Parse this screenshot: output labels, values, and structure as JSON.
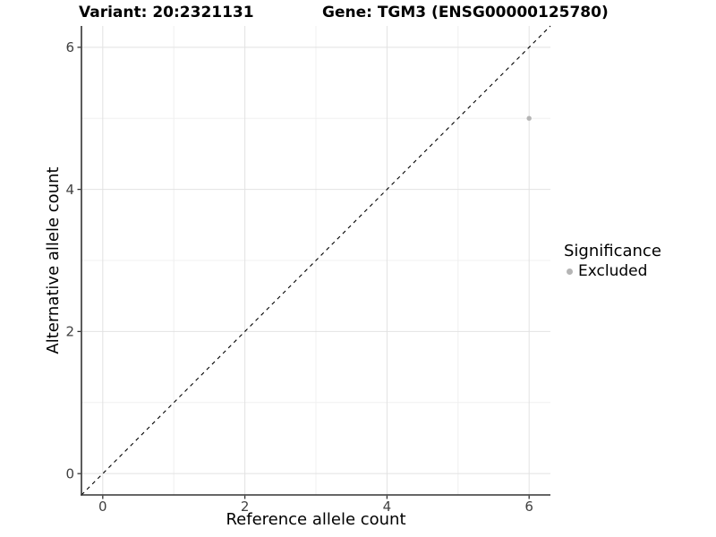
{
  "chart_data": {
    "type": "scatter",
    "title_left": "Variant: 20:2321131",
    "title_right": "Gene: TGM3 (ENSG00000125780)",
    "xlabel": "Reference allele count",
    "ylabel": "Alternative allele count",
    "xlim": [
      -0.3,
      6.3
    ],
    "ylim": [
      -0.3,
      6.3
    ],
    "x_ticks": [
      0,
      2,
      4,
      6
    ],
    "y_ticks": [
      0,
      2,
      4,
      6
    ],
    "x_minor_gridlines": [
      1,
      3,
      5
    ],
    "y_minor_gridlines": [
      1,
      3,
      5
    ],
    "grid": "on",
    "legend": {
      "title": "Significance",
      "position": "right",
      "items": [
        {
          "label": "Excluded",
          "color": "#b5b5b5"
        }
      ]
    },
    "series": [
      {
        "name": "Excluded",
        "marker": "circle",
        "color": "#b5b5b5",
        "points": [
          [
            6,
            5
          ]
        ]
      }
    ],
    "reference_line": {
      "style": "dashed",
      "color": "#000000",
      "from": [
        -0.3,
        -0.3
      ],
      "to": [
        6.3,
        6.3
      ]
    },
    "colors": {
      "background": "#ffffff",
      "major_grid": "#e2e2e2",
      "minor_grid": "#f0f0f0",
      "axis_line": "#333333",
      "tick_text": "#404040"
    }
  }
}
